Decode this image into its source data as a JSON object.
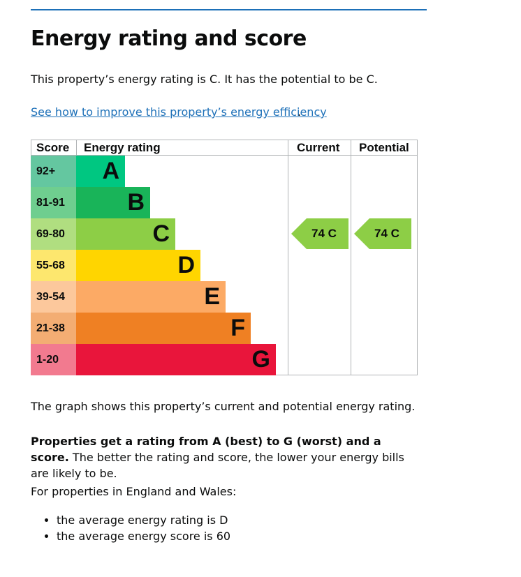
{
  "page": {
    "heading": "Energy rating and score",
    "lead": "This property’s energy rating is C. It has the potential to be C.",
    "improve_link": "See how to improve this property’s energy efficiency",
    "improve_period": ".",
    "graph_caption": "The graph shows this property’s current and potential energy rating.",
    "ratings_bold": "Properties get a rating from A (best) to G (worst) and a score.",
    "ratings_rest": " The better the rating and score, the lower your energy bills are likely to be.",
    "region_intro": "For properties in England and Wales:",
    "bullets": [
      "the average energy rating is D",
      "the average energy score is 60"
    ]
  },
  "chart_data": {
    "type": "table",
    "headers": {
      "score": "Score",
      "rating": "Energy rating",
      "current": "Current",
      "potential": "Potential"
    },
    "bands": [
      {
        "score": "92+",
        "letter": "A",
        "bar_color": "#00c781",
        "score_color": "#64c7a0"
      },
      {
        "score": "81-91",
        "letter": "B",
        "bar_color": "#19b459",
        "score_color": "#6fce8f"
      },
      {
        "score": "69-80",
        "letter": "C",
        "bar_color": "#8dce46",
        "score_color": "#b0de80"
      },
      {
        "score": "55-68",
        "letter": "D",
        "bar_color": "#ffd500",
        "score_color": "#fde76e"
      },
      {
        "score": "39-54",
        "letter": "E",
        "bar_color": "#fcaa65",
        "score_color": "#fcc89c"
      },
      {
        "score": "21-38",
        "letter": "F",
        "bar_color": "#ef8023",
        "score_color": "#f3ad73"
      },
      {
        "score": "1-20",
        "letter": "G",
        "bar_color": "#e9153b",
        "score_color": "#f27a8f"
      }
    ],
    "current": {
      "score": 74,
      "band": "C",
      "label": "74 C",
      "color": "#8dce46"
    },
    "potential": {
      "score": 74,
      "band": "C",
      "label": "74 C",
      "color": "#8dce46"
    }
  }
}
